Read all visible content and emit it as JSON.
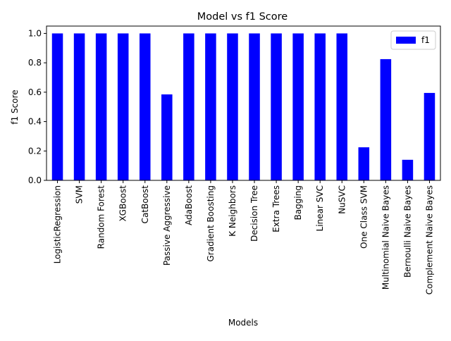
{
  "chart_data": {
    "type": "bar",
    "title": "Model vs f1 Score",
    "xlabel": "Models",
    "ylabel": "f1 Score",
    "ylim": [
      0,
      1.05
    ],
    "yticks": [
      0.0,
      0.2,
      0.4,
      0.6,
      0.8,
      1.0
    ],
    "ytick_labels": [
      "0.0",
      "0.2",
      "0.4",
      "0.6",
      "0.8",
      "1.0"
    ],
    "grid": false,
    "legend": "top-right",
    "categories": [
      "LogisticRegression",
      "SVM",
      "Random Forest",
      "XGBoost",
      "CatBoost",
      "Passive Aggressive",
      "AdaBoost",
      "Gradient Boosting",
      "K Neighbors",
      "Decision Tree",
      "Extra Trees",
      "Bagging",
      "Linear SVC",
      "NuSVC",
      "One Class SVM",
      "Multinomial Naive Bayes",
      "Bernoulli Naive Bayes",
      "Complement Naive Bayes"
    ],
    "series": [
      {
        "name": "f1",
        "color": "#0000ff",
        "values": [
          1.0,
          1.0,
          1.0,
          1.0,
          1.0,
          0.585,
          1.0,
          1.0,
          1.0,
          1.0,
          1.0,
          1.0,
          1.0,
          1.0,
          0.225,
          0.825,
          0.14,
          0.595
        ]
      }
    ]
  }
}
